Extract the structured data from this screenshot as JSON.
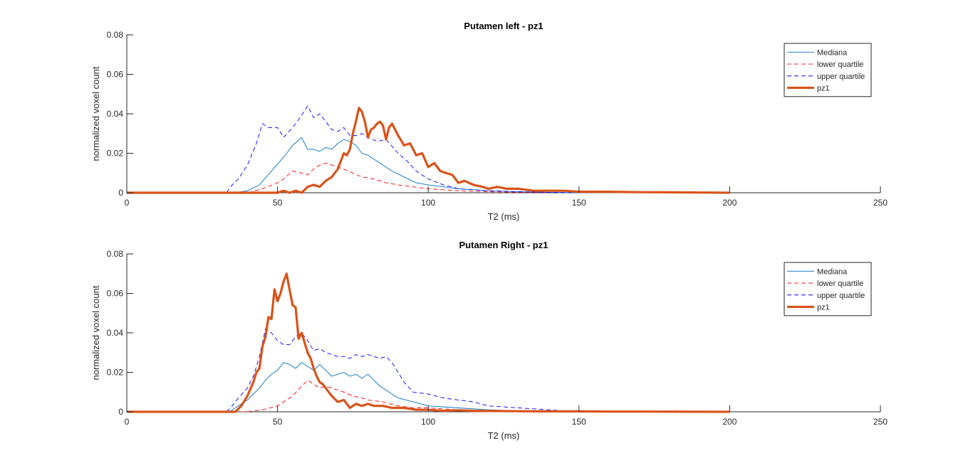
{
  "chart_data": [
    {
      "type": "line",
      "title": "Putamen left - pz1",
      "xlabel": "T2 (ms)",
      "ylabel": "normalized voxel count",
      "xlim": [
        0,
        250
      ],
      "ylim": [
        0,
        0.08
      ],
      "xticks": [
        0,
        50,
        100,
        150,
        200,
        250
      ],
      "yticks": [
        0,
        0.02,
        0.04,
        0.06,
        0.08
      ],
      "xtick_labels": [
        "0",
        "50",
        "100",
        "150",
        "200",
        "250"
      ],
      "ytick_labels": [
        "0",
        "0.02",
        "0.04",
        "0.06",
        "0.08"
      ],
      "legend_position": "top-right",
      "series": [
        {
          "name": "Mediana",
          "color": "#0072BD",
          "style": "solid",
          "width": "thin",
          "x": [
            0,
            36,
            40,
            44,
            48,
            52,
            55,
            58,
            60,
            62,
            64,
            66,
            68,
            70,
            72,
            74,
            76,
            78,
            80,
            82,
            85,
            88,
            92,
            96,
            100,
            105,
            110,
            115,
            120,
            125,
            130,
            140,
            150
          ],
          "y": [
            0,
            0,
            0.001,
            0.004,
            0.011,
            0.018,
            0.024,
            0.028,
            0.022,
            0.022,
            0.021,
            0.023,
            0.022,
            0.025,
            0.027,
            0.026,
            0.024,
            0.02,
            0.019,
            0.017,
            0.014,
            0.011,
            0.008,
            0.005,
            0.004,
            0.003,
            0.002,
            0.0015,
            0.001,
            0.0008,
            0.0005,
            0.0002,
            0
          ]
        },
        {
          "name": "lower quartile",
          "color": "#FF0000",
          "style": "dashed",
          "width": "thin",
          "x": [
            0,
            40,
            45,
            50,
            52,
            55,
            58,
            60,
            62,
            64,
            66,
            68,
            70,
            72,
            75,
            78,
            82,
            86,
            90,
            95,
            100,
            110,
            120,
            130,
            140
          ],
          "y": [
            0,
            0,
            0.002,
            0.005,
            0.007,
            0.011,
            0.01,
            0.009,
            0.012,
            0.014,
            0.015,
            0.014,
            0.013,
            0.012,
            0.01,
            0.008,
            0.007,
            0.005,
            0.004,
            0.003,
            0.002,
            0.001,
            0.0005,
            0.0002,
            0
          ]
        },
        {
          "name": "upper quartile",
          "color": "#0000FF",
          "style": "dashed",
          "width": "thin",
          "x": [
            0,
            33,
            35,
            37,
            40,
            43,
            45,
            47,
            50,
            52,
            55,
            57,
            60,
            62,
            64,
            66,
            68,
            70,
            72,
            74,
            76,
            78,
            80,
            83,
            86,
            90,
            93,
            96,
            100,
            105,
            110,
            120,
            130,
            140,
            150
          ],
          "y": [
            0,
            0,
            0.004,
            0.007,
            0.014,
            0.025,
            0.035,
            0.033,
            0.033,
            0.028,
            0.033,
            0.037,
            0.044,
            0.038,
            0.04,
            0.036,
            0.032,
            0.031,
            0.033,
            0.029,
            0.029,
            0.03,
            0.028,
            0.026,
            0.027,
            0.02,
            0.016,
            0.011,
            0.007,
            0.004,
            0.002,
            0.001,
            0.0005,
            0.0002,
            0
          ]
        },
        {
          "name": "pz1",
          "color": "#D95319",
          "style": "solid",
          "width": "thick",
          "x": [
            0,
            50,
            52,
            54,
            56,
            58,
            60,
            62,
            64,
            66,
            68,
            70,
            72,
            73,
            74,
            75,
            76,
            77,
            78,
            79,
            80,
            81,
            82,
            83,
            84,
            85,
            86,
            87,
            88,
            90,
            92,
            94,
            96,
            98,
            100,
            102,
            104,
            106,
            108,
            110,
            112,
            115,
            118,
            120,
            123,
            126,
            130,
            135,
            140,
            145,
            150,
            155,
            160,
            170,
            180,
            190,
            200
          ],
          "y": [
            0,
            0,
            0.001,
            0,
            0.001,
            0,
            0.003,
            0.004,
            0.003,
            0.006,
            0.008,
            0.012,
            0.02,
            0.019,
            0.022,
            0.03,
            0.036,
            0.043,
            0.041,
            0.036,
            0.028,
            0.032,
            0.033,
            0.035,
            0.036,
            0.034,
            0.027,
            0.033,
            0.035,
            0.029,
            0.024,
            0.025,
            0.019,
            0.02,
            0.013,
            0.015,
            0.011,
            0.01,
            0.009,
            0.005,
            0.006,
            0.004,
            0.003,
            0.002,
            0.003,
            0.002,
            0.002,
            0.001,
            0.001,
            0.001,
            0.0005,
            0.0005,
            0.0005,
            0.0003,
            0.0002,
            0.0001,
            0
          ]
        }
      ]
    },
    {
      "type": "line",
      "title": "Putamen Right - pz1",
      "xlabel": "T2 (ms)",
      "ylabel": "normalized voxel count",
      "xlim": [
        0,
        250
      ],
      "ylim": [
        0,
        0.08
      ],
      "xticks": [
        0,
        50,
        100,
        150,
        200,
        250
      ],
      "yticks": [
        0,
        0.02,
        0.04,
        0.06,
        0.08
      ],
      "xtick_labels": [
        "0",
        "50",
        "100",
        "150",
        "200",
        "250"
      ],
      "ytick_labels": [
        "0",
        "0.02",
        "0.04",
        "0.06",
        "0.08"
      ],
      "legend_position": "top-right",
      "series": [
        {
          "name": "Mediana",
          "color": "#0072BD",
          "style": "solid",
          "width": "thin",
          "x": [
            0,
            34,
            36,
            38,
            40,
            42,
            44,
            46,
            48,
            50,
            52,
            54,
            56,
            58,
            60,
            62,
            64,
            66,
            68,
            70,
            72,
            74,
            76,
            78,
            80,
            82,
            84,
            86,
            88,
            90,
            95,
            100,
            110,
            120,
            130,
            140,
            150
          ],
          "y": [
            0,
            0,
            0.002,
            0.004,
            0.006,
            0.009,
            0.012,
            0.016,
            0.019,
            0.021,
            0.025,
            0.024,
            0.022,
            0.025,
            0.023,
            0.021,
            0.024,
            0.021,
            0.018,
            0.019,
            0.02,
            0.018,
            0.019,
            0.017,
            0.019,
            0.016,
            0.013,
            0.011,
            0.009,
            0.007,
            0.005,
            0.003,
            0.002,
            0.001,
            0.0005,
            0.0002,
            0
          ]
        },
        {
          "name": "lower quartile",
          "color": "#FF0000",
          "style": "dashed",
          "width": "thin",
          "x": [
            0,
            40,
            45,
            50,
            55,
            58,
            60,
            62,
            64,
            66,
            68,
            70,
            72,
            75,
            78,
            80,
            85,
            90,
            95,
            100,
            110,
            120,
            130,
            140
          ],
          "y": [
            0,
            0,
            0.001,
            0.003,
            0.008,
            0.013,
            0.016,
            0.014,
            0.012,
            0.013,
            0.012,
            0.011,
            0.01,
            0.008,
            0.007,
            0.006,
            0.005,
            0.003,
            0.002,
            0.002,
            0.001,
            0.0005,
            0.0002,
            0
          ]
        },
        {
          "name": "upper quartile",
          "color": "#0000FF",
          "style": "dashed",
          "width": "thin",
          "x": [
            0,
            33,
            35,
            37,
            40,
            42,
            44,
            46,
            48,
            50,
            52,
            54,
            56,
            58,
            60,
            62,
            64,
            66,
            68,
            70,
            72,
            74,
            76,
            78,
            80,
            82,
            84,
            86,
            88,
            90,
            92,
            95,
            100,
            105,
            110,
            115,
            120,
            130,
            140,
            150
          ],
          "y": [
            0,
            0,
            0.003,
            0.007,
            0.012,
            0.018,
            0.028,
            0.042,
            0.04,
            0.036,
            0.034,
            0.034,
            0.038,
            0.04,
            0.036,
            0.031,
            0.032,
            0.03,
            0.029,
            0.028,
            0.028,
            0.027,
            0.029,
            0.028,
            0.029,
            0.028,
            0.027,
            0.028,
            0.025,
            0.02,
            0.015,
            0.01,
            0.009,
            0.007,
            0.006,
            0.005,
            0.003,
            0.002,
            0.001,
            0
          ]
        },
        {
          "name": "pz1",
          "color": "#D95319",
          "style": "solid",
          "width": "thick",
          "x": [
            0,
            36,
            38,
            40,
            42,
            43,
            44,
            45,
            46,
            47,
            48,
            49,
            50,
            51,
            52,
            53,
            54,
            55,
            56,
            57,
            58,
            59,
            60,
            61,
            62,
            63,
            64,
            65,
            66,
            67,
            68,
            70,
            72,
            74,
            76,
            78,
            80,
            82,
            85,
            88,
            92,
            96,
            100,
            105,
            110,
            115,
            120,
            130,
            140,
            150,
            160,
            170,
            200
          ],
          "y": [
            0,
            0,
            0.003,
            0.008,
            0.015,
            0.02,
            0.022,
            0.033,
            0.038,
            0.048,
            0.047,
            0.062,
            0.056,
            0.06,
            0.066,
            0.07,
            0.062,
            0.054,
            0.053,
            0.037,
            0.04,
            0.035,
            0.03,
            0.027,
            0.022,
            0.018,
            0.015,
            0.014,
            0.012,
            0.01,
            0.008,
            0.005,
            0.006,
            0.002,
            0.004,
            0.003,
            0.004,
            0.003,
            0.003,
            0.002,
            0.002,
            0.001,
            0.001,
            0.0005,
            0.0008,
            0.0005,
            0.0004,
            0.0003,
            0.0002,
            0.0002,
            0.0001,
            0.0001,
            0
          ]
        }
      ]
    }
  ]
}
